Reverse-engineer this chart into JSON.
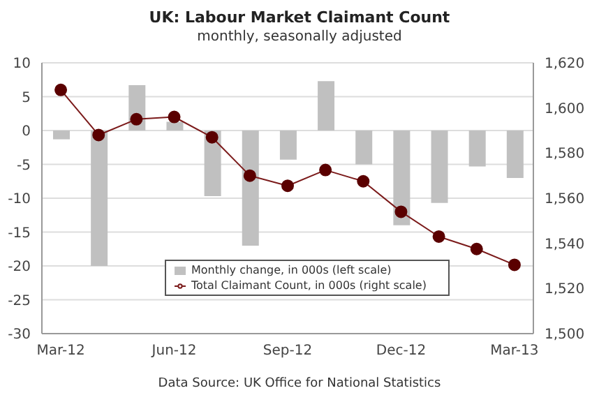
{
  "chart_data": {
    "type": "bar",
    "title": "UK: Labour Market Claimant Count",
    "subtitle": "monthly, seasonally adjusted",
    "categories": [
      "Mar-12",
      null,
      null,
      "Jun-12",
      null,
      null,
      "Sep-12",
      null,
      null,
      "Dec-12",
      null,
      null,
      "Mar-13"
    ],
    "series": [
      {
        "name": "Monthly change, in 000s (left scale)",
        "color": "#c0c0c0",
        "values": [
          -1.3,
          -20,
          6.7,
          1.3,
          -9.7,
          -17,
          -4.3,
          7.3,
          -5,
          -14,
          -10.7,
          -5.3,
          -7
        ]
      },
      {
        "name": "Total Claimant Count, in 000s (right scale)",
        "type": "line",
        "axis": "y2",
        "color": "#7b1a1a",
        "values": [
          1608,
          1588,
          1595,
          1596,
          1587,
          1570,
          1565.5,
          1572.5,
          1567.5,
          1554,
          1543,
          1537.5,
          1530.5
        ]
      }
    ],
    "ylim": [
      -30,
      10
    ],
    "yticks": [
      -30,
      -25,
      -20,
      -15,
      -10,
      -5,
      0,
      5,
      10
    ],
    "y2lim": [
      1500,
      1620
    ],
    "y2ticks": [
      {
        "value": 1500,
        "label": "1,500"
      },
      {
        "value": 1520,
        "label": "1,520"
      },
      {
        "value": 1540,
        "label": "1,540"
      },
      {
        "value": 1560,
        "label": "1,560"
      },
      {
        "value": 1580,
        "label": "1,580"
      },
      {
        "value": 1600,
        "label": "1,600"
      },
      {
        "value": 1620,
        "label": "1,620"
      }
    ],
    "grid": "y",
    "legend": "bottom",
    "marker": "circle",
    "annotations": [
      "Data Source: UK Office for National Statistics"
    ]
  }
}
